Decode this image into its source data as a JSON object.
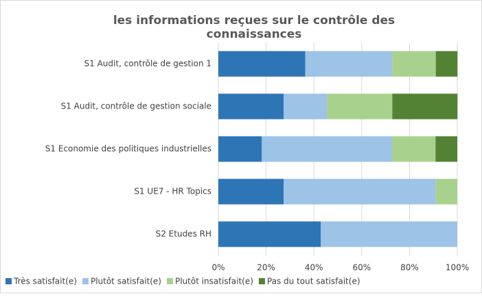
{
  "chart_data": {
    "type": "stacked-barh",
    "title": "les informations reçues sur le contrôle des connaissances",
    "categories": [
      "S1 Audit, contrôle de gestion 1",
      "S1 Audit, contrôle de gestion sociale",
      "S1 Economie des politiques industrielles",
      "S1 UE7 - HR Topics",
      "S2 Etudes RH"
    ],
    "series": [
      {
        "name": "Très satisfait(e)",
        "color": "#2e75b6",
        "values": [
          36.4,
          27.3,
          18.2,
          27.3,
          42.9
        ]
      },
      {
        "name": "Plutôt satisfait(e)",
        "color": "#9dc3e6",
        "values": [
          36.4,
          18.2,
          54.5,
          63.6,
          57.1
        ]
      },
      {
        "name": "Plutôt insatisfait(e)",
        "color": "#a9d18e",
        "values": [
          18.2,
          27.3,
          18.2,
          9.1,
          0
        ]
      },
      {
        "name": "Pas du tout satisfait(e)",
        "color": "#548235",
        "values": [
          9.1,
          27.3,
          9.1,
          0,
          0
        ]
      }
    ],
    "xlim": [
      0,
      100
    ],
    "xticks": [
      {
        "value": 0,
        "label": "0%"
      },
      {
        "value": 20,
        "label": "20%"
      },
      {
        "value": 40,
        "label": "40%"
      },
      {
        "value": 60,
        "label": "60%"
      },
      {
        "value": 80,
        "label": "80%"
      },
      {
        "value": 100,
        "label": "100%"
      }
    ],
    "grid": true,
    "legend": "bottom"
  }
}
